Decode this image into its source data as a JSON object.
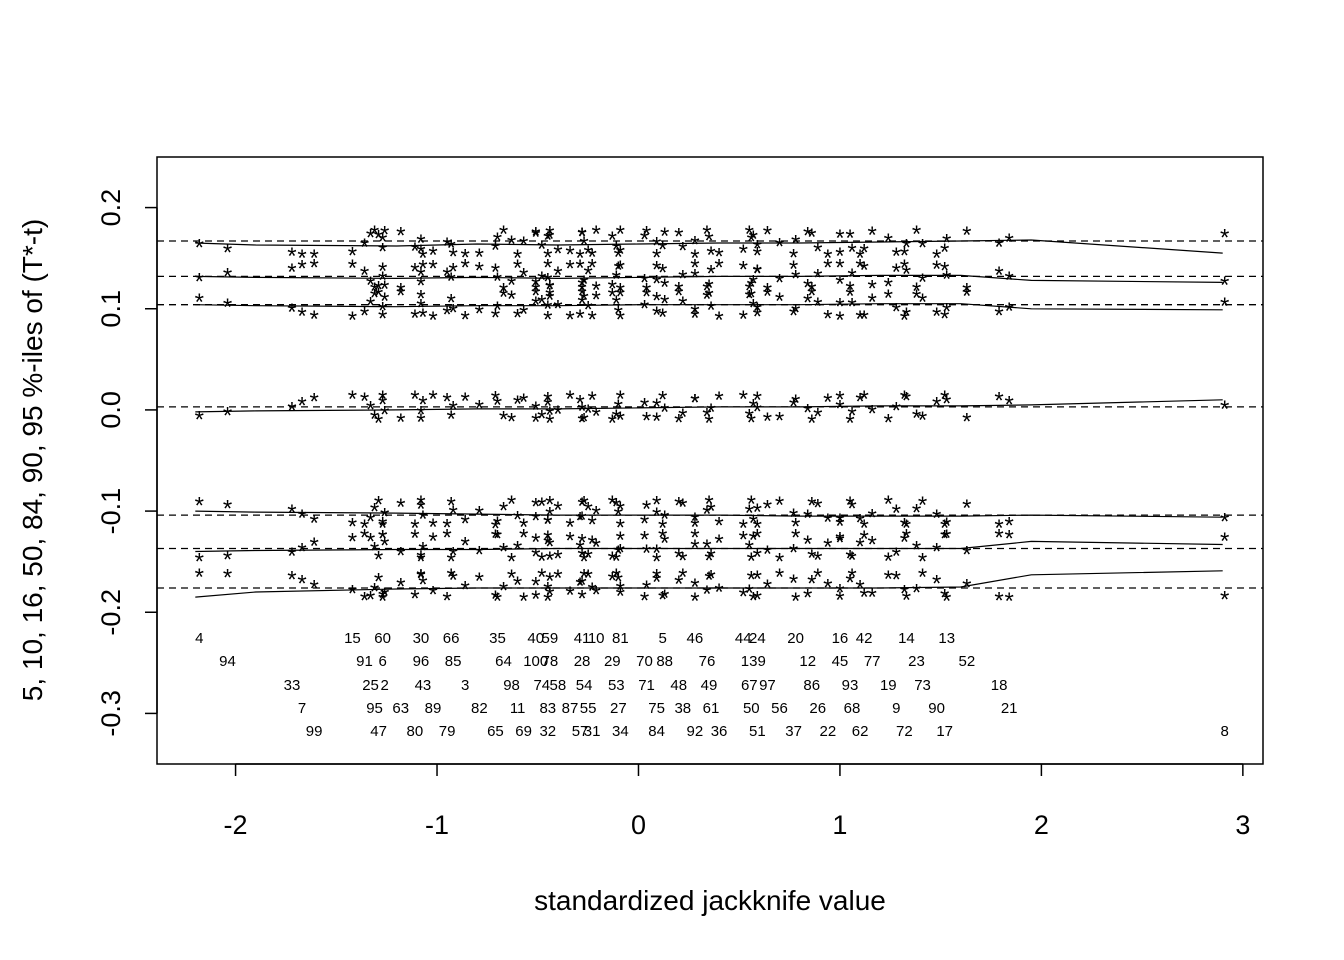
{
  "chart_data": {
    "type": "scatter",
    "title": "",
    "xlabel": "standardized jackknife value",
    "ylabel": "5, 10, 16, 50, 84, 90, 95 %-iles of (T*-t)",
    "xlim": [
      -2.39,
      3.1
    ],
    "ylim": [
      -0.35,
      0.25
    ],
    "x_ticks": [
      "-2",
      "-1",
      "0",
      "1",
      "2",
      "3"
    ],
    "y_ticks": [
      "-0.3",
      "-0.2",
      "-0.1",
      "0.0",
      "0.1",
      "0.2"
    ],
    "x_tick_values": [
      -2,
      -1,
      0,
      1,
      2,
      3
    ],
    "y_tick_values": [
      -0.3,
      -0.2,
      -0.1,
      0.0,
      0.1,
      0.2
    ],
    "reference_lines": {
      "style": "dashed",
      "y": [
        0.167,
        0.132,
        0.104,
        0.003,
        -0.104,
        -0.137,
        -0.176
      ]
    },
    "percentile_curves": [
      {
        "x": [
          -2.2,
          -1.9,
          -1.2,
          -0.8,
          -0.4,
          0.0,
          0.4,
          0.8,
          1.2,
          1.6,
          1.95,
          2.9
        ],
        "y": [
          0.165,
          0.163,
          0.162,
          0.164,
          0.163,
          0.164,
          0.165,
          0.165,
          0.166,
          0.167,
          0.168,
          0.155
        ]
      },
      {
        "x": [
          -2.2,
          -1.9,
          -1.2,
          -0.8,
          -0.4,
          0.0,
          0.4,
          0.8,
          1.2,
          1.6,
          1.95,
          2.9
        ],
        "y": [
          0.132,
          0.131,
          0.13,
          0.131,
          0.13,
          0.131,
          0.132,
          0.132,
          0.133,
          0.133,
          0.128,
          0.126
        ]
      },
      {
        "x": [
          -2.2,
          -1.9,
          -1.2,
          -0.8,
          -0.4,
          0.0,
          0.4,
          0.8,
          1.2,
          1.6,
          1.95,
          2.9
        ],
        "y": [
          0.104,
          0.103,
          0.102,
          0.103,
          0.103,
          0.104,
          0.104,
          0.104,
          0.105,
          0.105,
          0.1,
          0.099
        ]
      },
      {
        "x": [
          -2.2,
          -1.9,
          -1.2,
          -0.8,
          -0.4,
          0.0,
          0.4,
          0.8,
          1.2,
          1.6,
          1.95,
          2.9
        ],
        "y": [
          -0.002,
          -0.001,
          0.0,
          0.001,
          0.001,
          0.002,
          0.003,
          0.003,
          0.004,
          0.004,
          0.005,
          0.01
        ]
      },
      {
        "x": [
          -2.2,
          -1.9,
          -1.2,
          -0.8,
          -0.4,
          0.0,
          0.4,
          0.8,
          1.2,
          1.6,
          1.95,
          2.9
        ],
        "y": [
          -0.1,
          -0.101,
          -0.102,
          -0.103,
          -0.104,
          -0.104,
          -0.104,
          -0.105,
          -0.105,
          -0.105,
          -0.104,
          -0.106
        ]
      },
      {
        "x": [
          -2.2,
          -1.9,
          -1.2,
          -0.8,
          -0.4,
          0.0,
          0.4,
          0.8,
          1.2,
          1.6,
          1.95,
          2.9
        ],
        "y": [
          -0.14,
          -0.139,
          -0.138,
          -0.138,
          -0.137,
          -0.137,
          -0.137,
          -0.137,
          -0.137,
          -0.137,
          -0.13,
          -0.133
        ]
      },
      {
        "x": [
          -2.2,
          -1.9,
          -1.2,
          -0.8,
          -0.4,
          0.0,
          0.4,
          0.8,
          1.2,
          1.6,
          1.95,
          2.9
        ],
        "y": [
          -0.185,
          -0.18,
          -0.177,
          -0.176,
          -0.176,
          -0.176,
          -0.176,
          -0.176,
          -0.176,
          -0.175,
          -0.163,
          -0.159
        ]
      }
    ],
    "percentile_offsets": [
      0.163,
      0.13,
      0.102,
      0.0,
      -0.104,
      -0.137,
      -0.176
    ],
    "observations": [
      {
        "label": "4",
        "x": -2.18,
        "row": 0
      },
      {
        "label": "94",
        "x": -2.04,
        "row": 1
      },
      {
        "label": "33",
        "x": -1.72,
        "row": 2
      },
      {
        "label": "7",
        "x": -1.67,
        "row": 3
      },
      {
        "label": "99",
        "x": -1.61,
        "row": 4
      },
      {
        "label": "15",
        "x": -1.42,
        "row": 0
      },
      {
        "label": "60",
        "x": -1.27,
        "row": 0
      },
      {
        "label": "91",
        "x": -1.36,
        "row": 1
      },
      {
        "label": "6",
        "x": -1.27,
        "row": 1
      },
      {
        "label": "25",
        "x": -1.33,
        "row": 2
      },
      {
        "label": "2",
        "x": -1.26,
        "row": 2
      },
      {
        "label": "95",
        "x": -1.31,
        "row": 3
      },
      {
        "label": "63",
        "x": -1.18,
        "row": 3
      },
      {
        "label": "47",
        "x": -1.29,
        "row": 4
      },
      {
        "label": "30",
        "x": -1.08,
        "row": 0
      },
      {
        "label": "66",
        "x": -0.93,
        "row": 0
      },
      {
        "label": "96",
        "x": -1.08,
        "row": 1
      },
      {
        "label": "85",
        "x": -0.92,
        "row": 1
      },
      {
        "label": "43",
        "x": -1.07,
        "row": 2
      },
      {
        "label": "3",
        "x": -0.86,
        "row": 2
      },
      {
        "label": "89",
        "x": -1.02,
        "row": 3
      },
      {
        "label": "80",
        "x": -1.11,
        "row": 4
      },
      {
        "label": "79",
        "x": -0.95,
        "row": 4
      },
      {
        "label": "35",
        "x": -0.7,
        "row": 0
      },
      {
        "label": "40",
        "x": -0.51,
        "row": 0
      },
      {
        "label": "59",
        "x": -0.44,
        "row": 0
      },
      {
        "label": "64",
        "x": -0.67,
        "row": 1
      },
      {
        "label": "100",
        "x": -0.51,
        "row": 1
      },
      {
        "label": "78",
        "x": -0.44,
        "row": 1
      },
      {
        "label": "98",
        "x": -0.63,
        "row": 2
      },
      {
        "label": "74",
        "x": -0.48,
        "row": 2
      },
      {
        "label": "58",
        "x": -0.4,
        "row": 2
      },
      {
        "label": "82",
        "x": -0.79,
        "row": 3
      },
      {
        "label": "11",
        "x": -0.6,
        "row": 3
      },
      {
        "label": "83",
        "x": -0.45,
        "row": 3
      },
      {
        "label": "87",
        "x": -0.34,
        "row": 3
      },
      {
        "label": "65",
        "x": -0.71,
        "row": 4
      },
      {
        "label": "69",
        "x": -0.57,
        "row": 4
      },
      {
        "label": "32",
        "x": -0.45,
        "row": 4
      },
      {
        "label": "41",
        "x": -0.28,
        "row": 0
      },
      {
        "label": "10",
        "x": -0.21,
        "row": 0
      },
      {
        "label": "81",
        "x": -0.09,
        "row": 0
      },
      {
        "label": "28",
        "x": -0.28,
        "row": 1
      },
      {
        "label": "29",
        "x": -0.13,
        "row": 1
      },
      {
        "label": "54",
        "x": -0.27,
        "row": 2
      },
      {
        "label": "53",
        "x": -0.11,
        "row": 2
      },
      {
        "label": "55",
        "x": -0.25,
        "row": 3
      },
      {
        "label": "27",
        "x": -0.1,
        "row": 3
      },
      {
        "label": "57",
        "x": -0.29,
        "row": 4
      },
      {
        "label": "31",
        "x": -0.23,
        "row": 4
      },
      {
        "label": "34",
        "x": -0.09,
        "row": 4
      },
      {
        "label": "5",
        "x": 0.12,
        "row": 0
      },
      {
        "label": "46",
        "x": 0.28,
        "row": 0
      },
      {
        "label": "70",
        "x": 0.03,
        "row": 1
      },
      {
        "label": "88",
        "x": 0.13,
        "row": 1
      },
      {
        "label": "76",
        "x": 0.34,
        "row": 1
      },
      {
        "label": "71",
        "x": 0.04,
        "row": 2
      },
      {
        "label": "48",
        "x": 0.2,
        "row": 2
      },
      {
        "label": "49",
        "x": 0.35,
        "row": 2
      },
      {
        "label": "75",
        "x": 0.09,
        "row": 3
      },
      {
        "label": "38",
        "x": 0.22,
        "row": 3
      },
      {
        "label": "61",
        "x": 0.36,
        "row": 3
      },
      {
        "label": "84",
        "x": 0.09,
        "row": 4
      },
      {
        "label": "92",
        "x": 0.28,
        "row": 4
      },
      {
        "label": "36",
        "x": 0.4,
        "row": 4
      },
      {
        "label": "44",
        "x": 0.52,
        "row": 0
      },
      {
        "label": "24",
        "x": 0.59,
        "row": 0
      },
      {
        "label": "20",
        "x": 0.78,
        "row": 0
      },
      {
        "label": "139",
        "x": 0.57,
        "row": 1
      },
      {
        "label": "12",
        "x": 0.84,
        "row": 1
      },
      {
        "label": "67",
        "x": 0.55,
        "row": 2
      },
      {
        "label": "97",
        "x": 0.64,
        "row": 2
      },
      {
        "label": "86",
        "x": 0.86,
        "row": 2
      },
      {
        "label": "50",
        "x": 0.56,
        "row": 3
      },
      {
        "label": "56",
        "x": 0.7,
        "row": 3
      },
      {
        "label": "26",
        "x": 0.89,
        "row": 3
      },
      {
        "label": "51",
        "x": 0.59,
        "row": 4
      },
      {
        "label": "37",
        "x": 0.77,
        "row": 4
      },
      {
        "label": "22",
        "x": 0.94,
        "row": 4
      },
      {
        "label": "16",
        "x": 1.0,
        "row": 0
      },
      {
        "label": "42",
        "x": 1.12,
        "row": 0
      },
      {
        "label": "14",
        "x": 1.33,
        "row": 0
      },
      {
        "label": "13",
        "x": 1.53,
        "row": 0
      },
      {
        "label": "45",
        "x": 1.0,
        "row": 1
      },
      {
        "label": "77",
        "x": 1.16,
        "row": 1
      },
      {
        "label": "23",
        "x": 1.38,
        "row": 1
      },
      {
        "label": "52",
        "x": 1.63,
        "row": 1
      },
      {
        "label": "93",
        "x": 1.05,
        "row": 2
      },
      {
        "label": "19",
        "x": 1.24,
        "row": 2
      },
      {
        "label": "73",
        "x": 1.41,
        "row": 2
      },
      {
        "label": "68",
        "x": 1.06,
        "row": 3
      },
      {
        "label": "9",
        "x": 1.28,
        "row": 3
      },
      {
        "label": "90",
        "x": 1.48,
        "row": 3
      },
      {
        "label": "62",
        "x": 1.1,
        "row": 4
      },
      {
        "label": "72",
        "x": 1.32,
        "row": 4
      },
      {
        "label": "17",
        "x": 1.52,
        "row": 4
      },
      {
        "label": "18",
        "x": 1.79,
        "row": 2
      },
      {
        "label": "21",
        "x": 1.84,
        "row": 3
      },
      {
        "label": "8",
        "x": 2.91,
        "row": 4
      }
    ]
  }
}
